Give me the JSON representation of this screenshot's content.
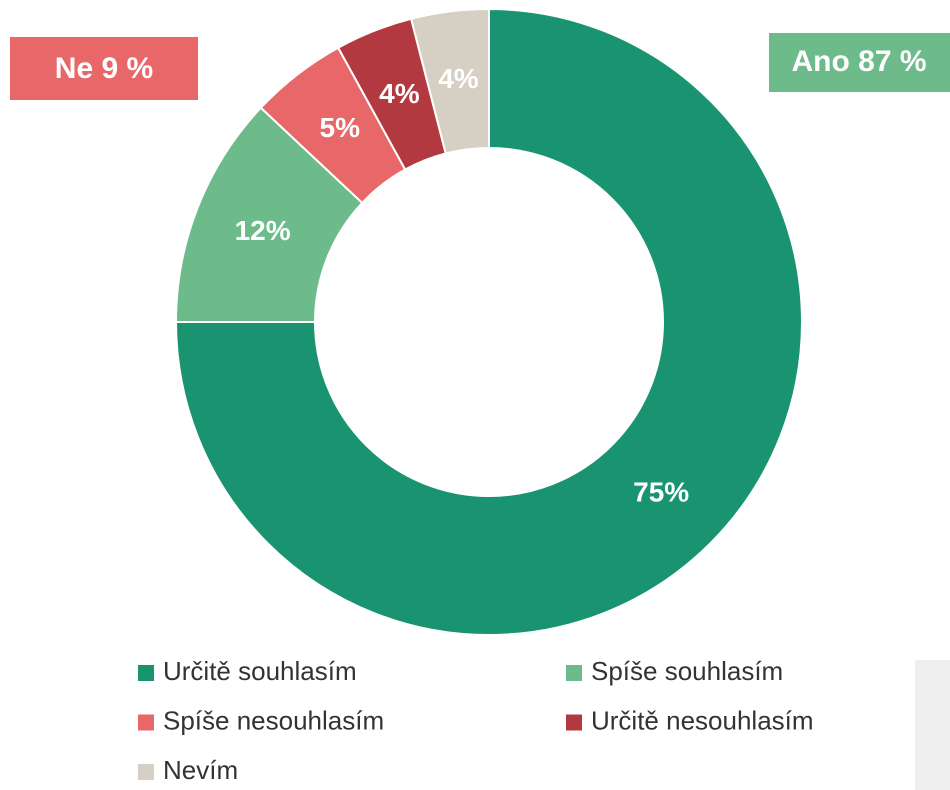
{
  "chart_data": {
    "type": "donut",
    "categories": [
      "Určitě souhlasím",
      "Spíše souhlasím",
      "Spíše nesouhlasím",
      "Určitě nesouhlasím",
      "Nevím"
    ],
    "values": [
      75,
      12,
      5,
      4,
      4
    ],
    "value_labels": [
      "75%",
      "12%",
      "5%",
      "4%",
      "4%"
    ],
    "colors": [
      "#1a9470",
      "#6dbb8a",
      "#e8686a",
      "#b2393f",
      "#d6d0c4"
    ],
    "annotations": [
      {
        "text": "Ne 9 %",
        "color": "#e8686a"
      },
      {
        "text": "Ano 87 %",
        "color": "#6dbb8a"
      }
    ],
    "legend": true
  }
}
